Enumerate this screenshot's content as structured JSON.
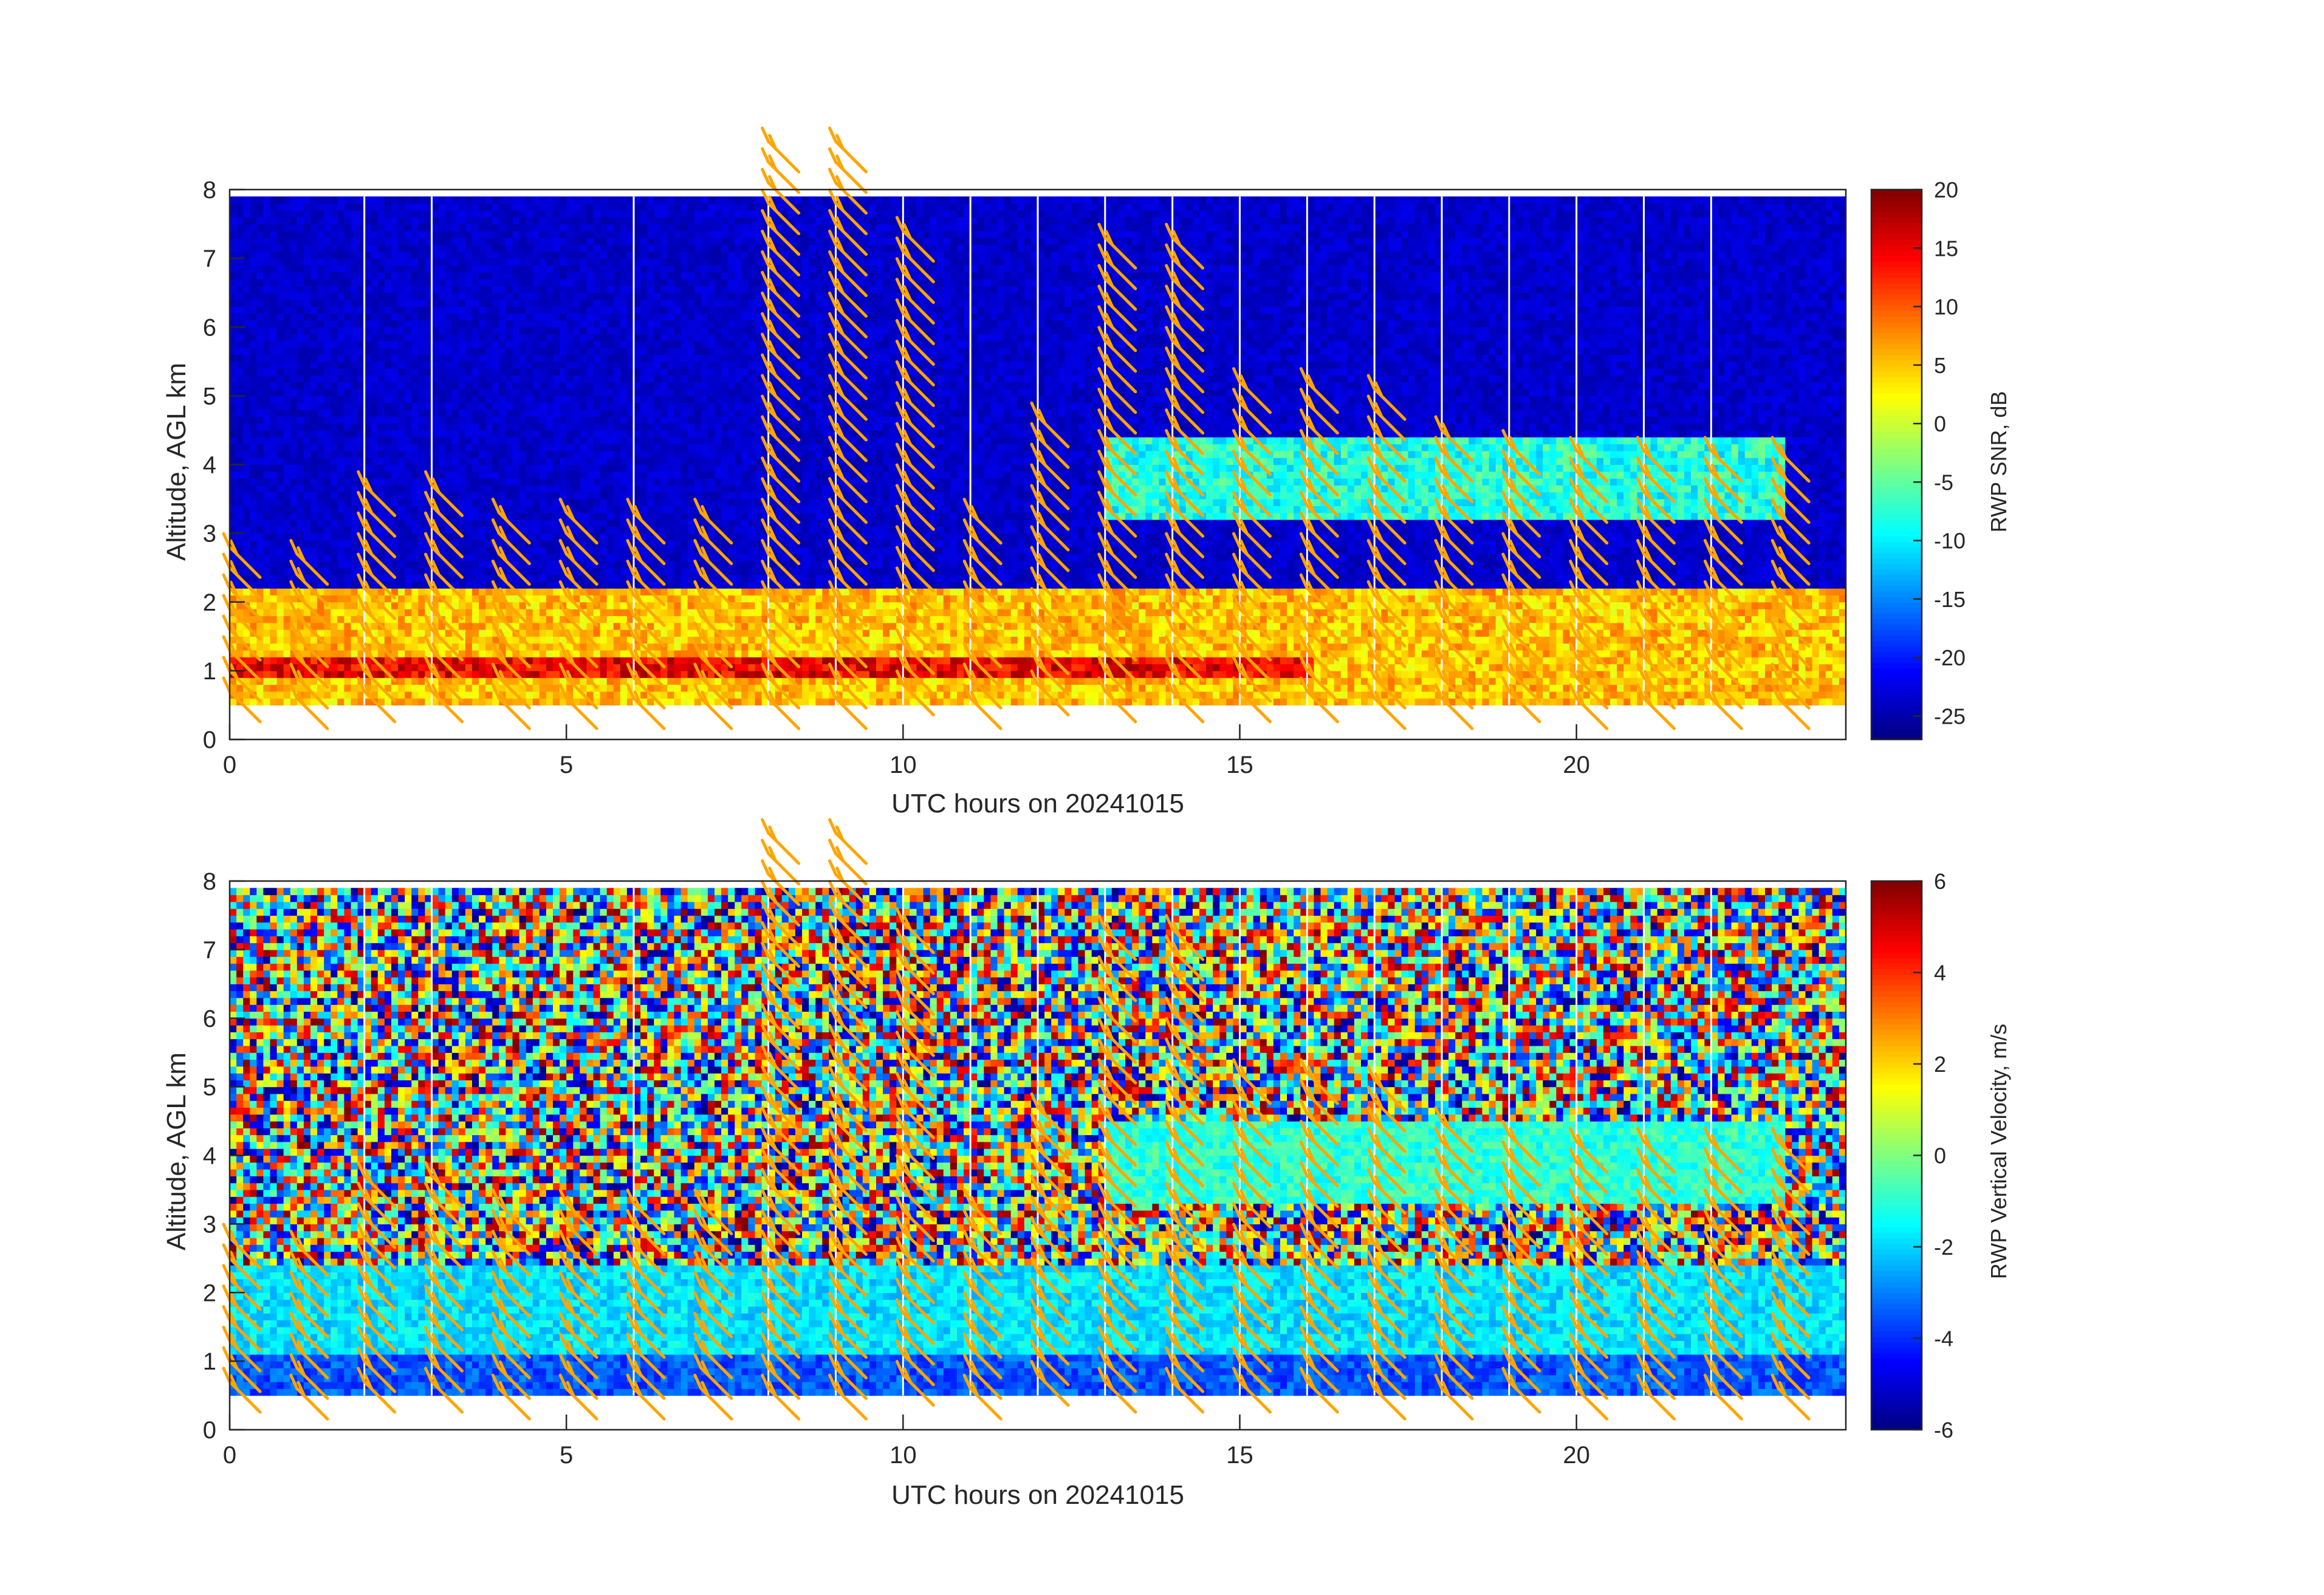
{
  "colors": {
    "barb": "#ffa500",
    "axis": "#262626",
    "gap": "#ffffff",
    "background": "#ffffff"
  },
  "chart_data": [
    {
      "type": "heatmap",
      "title": "",
      "xlabel": "UTC hours on 20241015",
      "ylabel": "Altitude, AGL km",
      "xlim": [
        0,
        24
      ],
      "ylim": [
        0,
        8
      ],
      "x_ticks": [
        0,
        5,
        10,
        15,
        20
      ],
      "y_ticks": [
        0,
        1,
        2,
        3,
        4,
        5,
        6,
        7,
        8
      ],
      "data_altitude_range_km": [
        0.5,
        7.9
      ],
      "colorbar": {
        "label": "RWP SNR, dB",
        "colormap": "jet",
        "range": [
          -27,
          20
        ],
        "ticks": [
          20,
          15,
          10,
          5,
          0,
          -5,
          -10,
          -15,
          -20,
          -25
        ]
      },
      "dominant_features": [
        {
          "quantity": "SNR",
          "value_db": 15,
          "altitude_km": [
            0.9,
            1.2
          ],
          "hours": [
            0,
            16
          ]
        },
        {
          "quantity": "SNR",
          "value_db": 5,
          "altitude_km": [
            0.5,
            2.2
          ],
          "hours": [
            0,
            24
          ]
        },
        {
          "quantity": "SNR",
          "value_db": -8,
          "altitude_km": [
            3.2,
            4.4
          ],
          "hours": [
            13,
            23
          ]
        },
        {
          "quantity": "SNR",
          "value_db": -25,
          "altitude_km": [
            2.5,
            8.0
          ],
          "hours": [
            0,
            24
          ],
          "note": "background noise"
        }
      ],
      "wind_barbs": {
        "times_hours": [
          0,
          1,
          2,
          3,
          4,
          5,
          6,
          7,
          8,
          9,
          10,
          11,
          12,
          13,
          14,
          15,
          16,
          17,
          18,
          19,
          20,
          21,
          22,
          23
        ],
        "tops_km": [
          2.8,
          2.7,
          3.7,
          3.7,
          3.3,
          3.3,
          3.3,
          3.3,
          8.7,
          8.7,
          7.4,
          3.3,
          4.7,
          7.3,
          7.3,
          5.2,
          5.2,
          5.1,
          4.5,
          4.3,
          4.2,
          4.2,
          4.2,
          4.2
        ],
        "direction": "northwesterly"
      }
    },
    {
      "type": "heatmap",
      "title": "",
      "xlabel": "UTC hours on 20241015",
      "ylabel": "Altitude, AGL km",
      "xlim": [
        0,
        24
      ],
      "ylim": [
        0,
        8
      ],
      "x_ticks": [
        0,
        5,
        10,
        15,
        20
      ],
      "y_ticks": [
        0,
        1,
        2,
        3,
        4,
        5,
        6,
        7,
        8
      ],
      "data_altitude_range_km": [
        0.5,
        7.9
      ],
      "colorbar": {
        "label": "RWP Vertical Velocity, m/s",
        "colormap": "jet",
        "range": [
          -6,
          6
        ],
        "ticks": [
          6,
          4,
          2,
          0,
          -2,
          -4,
          -6
        ]
      },
      "dominant_features": [
        {
          "quantity": "vertical velocity",
          "value_ms": -1.8,
          "altitude_km": [
            0.5,
            2.4
          ],
          "hours": [
            0,
            24
          ]
        },
        {
          "quantity": "vertical velocity",
          "value_ms": -3.5,
          "altitude_km": [
            0.5,
            1.1
          ],
          "hours": [
            0,
            24
          ]
        },
        {
          "quantity": "vertical velocity",
          "value_ms": -1,
          "altitude_km": [
            3.3,
            4.5
          ],
          "hours": [
            13,
            23
          ]
        },
        {
          "quantity": "vertical velocity",
          "value_ms": 0,
          "altitude_km": [
            2.5,
            8.0
          ],
          "hours": [
            0,
            24
          ],
          "note": "noise, random -6 to 6"
        }
      ],
      "wind_barbs": {
        "times_hours": [
          0,
          1,
          2,
          3,
          4,
          5,
          6,
          7,
          8,
          9,
          10,
          11,
          12,
          13,
          14,
          15,
          16,
          17,
          18,
          19,
          20,
          21,
          22,
          23
        ],
        "tops_km": [
          2.8,
          2.7,
          3.7,
          3.7,
          3.3,
          3.3,
          3.3,
          3.3,
          8.7,
          8.7,
          7.4,
          3.3,
          4.7,
          7.3,
          7.3,
          5.2,
          5.2,
          5.1,
          4.5,
          4.3,
          4.2,
          4.2,
          4.2,
          4.2
        ],
        "direction": "northwesterly"
      }
    }
  ]
}
